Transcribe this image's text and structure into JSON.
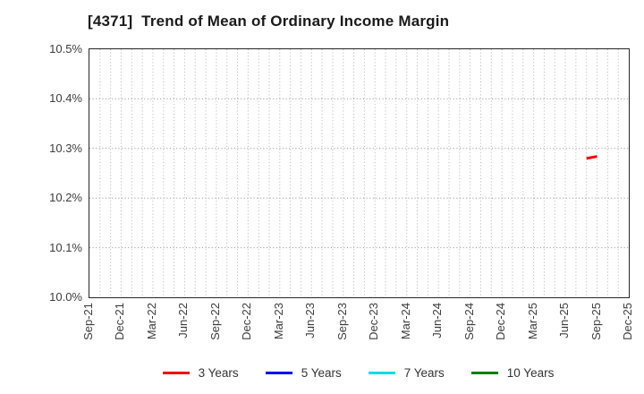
{
  "chart_data": {
    "type": "line",
    "title": "[4371]  Trend of Mean of Ordinary Income Margin",
    "xlabel": "",
    "ylabel": "",
    "ylim": [
      10.0,
      10.5
    ],
    "y_ticks": [
      {
        "value": 10.5,
        "label": "10.5%"
      },
      {
        "value": 10.4,
        "label": "10.4%"
      },
      {
        "value": 10.3,
        "label": "10.3%"
      },
      {
        "value": 10.2,
        "label": "10.2%"
      },
      {
        "value": 10.1,
        "label": "10.1%"
      },
      {
        "value": 10.0,
        "label": "10.0%"
      }
    ],
    "months": [
      "Sep-21",
      "Oct-21",
      "Nov-21",
      "Dec-21",
      "Jan-22",
      "Feb-22",
      "Mar-22",
      "Apr-22",
      "May-22",
      "Jun-22",
      "Jul-22",
      "Aug-22",
      "Sep-22",
      "Oct-22",
      "Nov-22",
      "Dec-22",
      "Jan-23",
      "Feb-23",
      "Mar-23",
      "Apr-23",
      "May-23",
      "Jun-23",
      "Jul-23",
      "Aug-23",
      "Sep-23",
      "Oct-23",
      "Nov-23",
      "Dec-23",
      "Jan-24",
      "Feb-24",
      "Mar-24",
      "Apr-24",
      "May-24",
      "Jun-24",
      "Jul-24",
      "Aug-24",
      "Sep-24",
      "Oct-24",
      "Nov-24",
      "Dec-24",
      "Jan-25",
      "Feb-25",
      "Mar-25",
      "Apr-25",
      "May-25",
      "Jun-25",
      "Jul-25",
      "Aug-25",
      "Sep-25",
      "Oct-25",
      "Nov-25",
      "Dec-25"
    ],
    "x_tick_every": 3,
    "x_tick_labels": [
      "Sep-21",
      "Dec-21",
      "Mar-22",
      "Jun-22",
      "Sep-22",
      "Dec-22",
      "Mar-23",
      "Jun-23",
      "Sep-23",
      "Dec-23",
      "Mar-24",
      "Jun-24",
      "Sep-24",
      "Dec-24",
      "Mar-25",
      "Jun-25",
      "Sep-25",
      "Dec-25"
    ],
    "grid": {
      "vertical": "monthly, dotted",
      "horizontal": "every 0.1%, dotted",
      "v_color": "#b3b3b3",
      "h_color": "#8f8f8f"
    },
    "series": [
      {
        "name": "3 Years",
        "color": "#ee0000",
        "points": [
          {
            "month": "Aug-25",
            "value": 10.28
          },
          {
            "month": "Sep-25",
            "value": 10.284
          }
        ]
      },
      {
        "name": "5 Years",
        "color": "#0000ee",
        "points": []
      },
      {
        "name": "7 Years",
        "color": "#00dce6",
        "points": []
      },
      {
        "name": "10 Years",
        "color": "#008000",
        "points": []
      }
    ]
  },
  "frame": {
    "border_color": "#262626",
    "background": "#ffffff"
  }
}
